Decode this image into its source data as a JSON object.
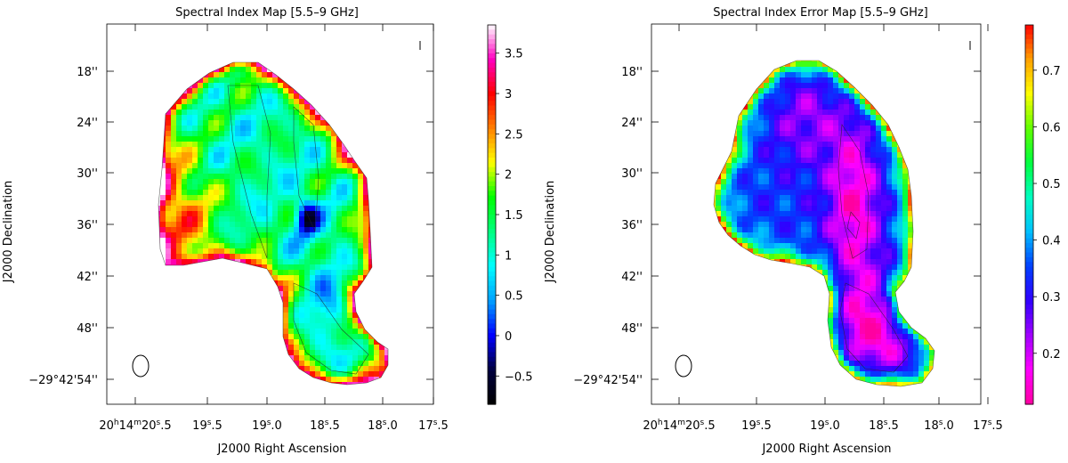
{
  "chart_data": [
    {
      "type": "heatmap",
      "title": "Spectral Index Map [5.5–9 GHz]",
      "xlabel": "J2000 Right Ascension",
      "ylabel": "J2000 Declination",
      "x_tick_labels": [
        {
          "value": 20.5,
          "label_main": "20",
          "sup1": "h",
          "mid1": "14",
          "sup2": "m",
          "mid2": "20",
          "sup3": "s",
          "tail": ".5"
        },
        {
          "value": 19.5,
          "label_main": "19",
          "sup3": "s",
          "tail": ".5"
        },
        {
          "value": 19.0,
          "label_main": "19",
          "sup3": "s",
          "tail": ".0"
        },
        {
          "value": 18.5,
          "label_main": "18",
          "sup3": "s",
          "tail": ".5"
        },
        {
          "value": 18.0,
          "label_main": "18",
          "sup3": "s",
          "tail": ".0"
        },
        {
          "value": 17.5,
          "label_main": "17",
          "sup3": "s",
          "tail": ".5"
        }
      ],
      "y_tick_labels": [
        {
          "value": 18,
          "label": "18''"
        },
        {
          "value": 24,
          "label": "24''"
        },
        {
          "value": 30,
          "label": "30''"
        },
        {
          "value": 36,
          "label": "36''"
        },
        {
          "value": 42,
          "label": "42''"
        },
        {
          "value": 48,
          "label": "48''"
        },
        {
          "value": 54,
          "label": "−29°42'54''"
        }
      ],
      "colorbar": {
        "range": [
          -0.85,
          3.85
        ],
        "ticks": [
          -0.5,
          0,
          0.5,
          1,
          1.5,
          2,
          2.5,
          3,
          3.5
        ],
        "tick_labels": [
          "−0.5",
          "0",
          "0.5",
          "1",
          "1.5",
          "2",
          "2.5",
          "3",
          "3.5"
        ],
        "colormap": [
          "#000000",
          "#000040",
          "#0000ff",
          "#00a0ff",
          "#00ffff",
          "#00ff80",
          "#00ff00",
          "#ffff00",
          "#ff8000",
          "#ff0000",
          "#ff00c0",
          "#ffffff"
        ]
      },
      "value_profile": "spectral index ~0.5–1.5 along the core ridge, minimum ~−0.5 near 18.7s/36'', rising to ~2.5–3.5 at the eastern edges"
    },
    {
      "type": "heatmap",
      "title": "Spectral Index Error Map [5.5–9 GHz]",
      "xlabel": "J2000 Right Ascension",
      "ylabel": "J2000 Declination",
      "x_tick_labels": [
        {
          "value": 20.5,
          "label_main": "20",
          "sup1": "h",
          "mid1": "14",
          "sup2": "m",
          "mid2": "20",
          "sup3": "s",
          "tail": ".5"
        },
        {
          "value": 19.5,
          "label_main": "19",
          "sup3": "s",
          "tail": ".5"
        },
        {
          "value": 19.0,
          "label_main": "19",
          "sup3": "s",
          "tail": ".0"
        },
        {
          "value": 18.5,
          "label_main": "18",
          "sup3": "s",
          "tail": ".5"
        },
        {
          "value": 18.0,
          "label_main": "18",
          "sup3": "s",
          "tail": ".0"
        },
        {
          "value": 17.5,
          "label_main": "17",
          "sup3": "s",
          "tail": ".5"
        }
      ],
      "y_tick_labels": [
        {
          "value": 18,
          "label": "18''"
        },
        {
          "value": 24,
          "label": "24''"
        },
        {
          "value": 30,
          "label": "30''"
        },
        {
          "value": 36,
          "label": "36''"
        },
        {
          "value": 42,
          "label": "42''"
        },
        {
          "value": 48,
          "label": "48''"
        },
        {
          "value": 54,
          "label": "−29°42'54''"
        }
      ],
      "colorbar": {
        "range": [
          0.11,
          0.78
        ],
        "ticks": [
          0.2,
          0.3,
          0.4,
          0.5,
          0.6,
          0.7
        ],
        "tick_labels": [
          "0.2",
          "0.3",
          "0.4",
          "0.5",
          "0.6",
          "0.7"
        ],
        "colormap": [
          "#ff00a0",
          "#ff00ff",
          "#a000ff",
          "#3000ff",
          "#0040ff",
          "#00c0ff",
          "#00ffc0",
          "#00ff40",
          "#60ff00",
          "#ffff00",
          "#ffa000",
          "#ff0000"
        ]
      },
      "value_profile": "error ~0.15 in the bright core, ~0.3 along the ridges, rising to ~0.6–0.75 at the edges"
    }
  ]
}
